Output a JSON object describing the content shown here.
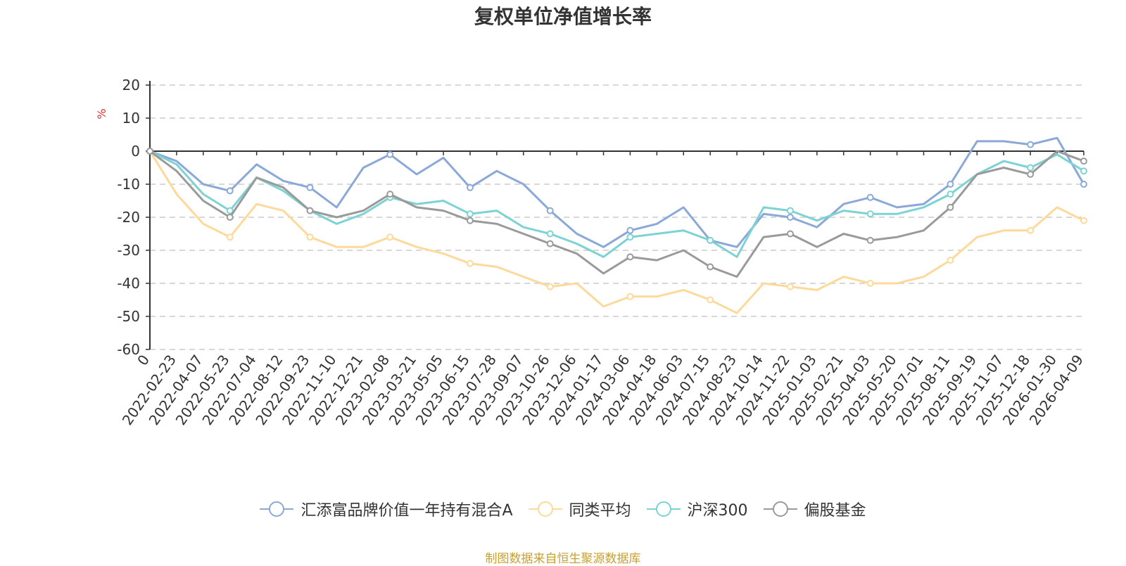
{
  "title": "复权单位净值增长率",
  "source": "制图数据来自恒生聚源数据库",
  "chart_data": {
    "type": "line",
    "title": "复权单位净值增长率",
    "ylabel": "%",
    "ylim": [
      -60,
      20
    ],
    "yticks": [
      20,
      10,
      0,
      -10,
      -20,
      -30,
      -40,
      -50,
      -60
    ],
    "grid": true,
    "legend_position": "bottom",
    "categories": [
      "0",
      "2022-02-23",
      "2022-04-07",
      "2022-05-23",
      "2022-07-04",
      "2022-08-12",
      "2022-09-23",
      "2022-11-10",
      "2022-12-21",
      "2023-02-08",
      "2023-03-21",
      "2023-05-05",
      "2023-06-15",
      "2023-07-28",
      "2023-09-07",
      "2023-10-26",
      "2023-12-06",
      "2024-01-17",
      "2024-03-06",
      "2024-04-18",
      "2024-06-03",
      "2024-07-15",
      "2024-08-23",
      "2024-10-14",
      "2024-11-22",
      "2025-01-03",
      "2025-02-21",
      "2025-04-03",
      "2025-05-20",
      "2025-07-01",
      "2025-08-11",
      "2025-09-19",
      "2025-11-07",
      "2025-12-18",
      "2026-01-30",
      "2026-04-09"
    ],
    "series": [
      {
        "name": "汇添富品牌价值一年持有混合A",
        "color": "#8aa8d8",
        "values": [
          0,
          -3,
          -10,
          -12,
          -4,
          -9,
          -11,
          -17,
          -5,
          -1,
          -7,
          -2,
          -11,
          -6,
          -10,
          -18,
          -25,
          -29,
          -24,
          -22,
          -17,
          -27,
          -29,
          -19,
          -20,
          -23,
          -16,
          -14,
          -17,
          -16,
          -10,
          3,
          3,
          2,
          4,
          -10
        ]
      },
      {
        "name": "同类平均",
        "color": "#fdd99a",
        "values": [
          0,
          -13,
          -22,
          -26,
          -16,
          -18,
          -26,
          -29,
          -29,
          -26,
          -29,
          -31,
          -34,
          -35,
          -38,
          -41,
          -40,
          -47,
          -44,
          -44,
          -42,
          -45,
          -49,
          -40,
          -41,
          -42,
          -38,
          -40,
          -40,
          -38,
          -33,
          -26,
          -24,
          -24,
          -17,
          -21
        ]
      },
      {
        "name": "沪深300",
        "color": "#7dd3d3",
        "values": [
          0,
          -4,
          -13,
          -18,
          -8,
          -12,
          -18,
          -22,
          -19,
          -14,
          -16,
          -15,
          -19,
          -18,
          -23,
          -25,
          -28,
          -32,
          -26,
          -25,
          -24,
          -27,
          -32,
          -17,
          -18,
          -21,
          -18,
          -19,
          -19,
          -17,
          -13,
          -7,
          -3,
          -5,
          -1,
          -6
        ]
      },
      {
        "name": "偏股基金",
        "color": "#9a9a9a",
        "values": [
          0,
          -6,
          -15,
          -20,
          -8,
          -11,
          -18,
          -20,
          -18,
          -13,
          -17,
          -18,
          -21,
          -22,
          -25,
          -28,
          -31,
          -37,
          -32,
          -33,
          -30,
          -35,
          -38,
          -26,
          -25,
          -29,
          -25,
          -27,
          -26,
          -24,
          -17,
          -7,
          -5,
          -7,
          0,
          -3
        ]
      }
    ]
  }
}
